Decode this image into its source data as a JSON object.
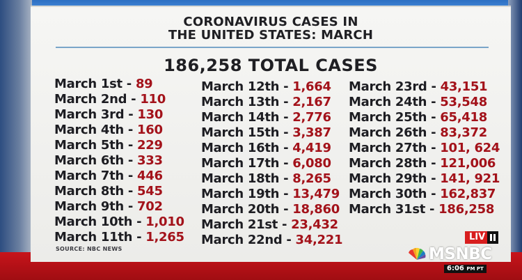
{
  "headline": {
    "line1": "CORONAVIRUS CASES IN",
    "line2": "THE UNITED STATES: MARCH"
  },
  "total": "186,258 TOTAL CASES",
  "columns": [
    [
      {
        "date": "March 1st",
        "count": "89"
      },
      {
        "date": "March 2nd",
        "count": "110"
      },
      {
        "date": "March 3rd",
        "count": "130"
      },
      {
        "date": "March 4th",
        "count": "160"
      },
      {
        "date": "March 5th",
        "count": "229"
      },
      {
        "date": "March 6th",
        "count": "333"
      },
      {
        "date": "March 7th",
        "count": "446"
      },
      {
        "date": "March 8th",
        "count": "545"
      },
      {
        "date": "March 9th",
        "count": "702"
      },
      {
        "date": "March 10th",
        "count": "1,010"
      },
      {
        "date": "March 11th",
        "count": "1,265"
      }
    ],
    [
      {
        "date": "March 12th",
        "count": "1,664"
      },
      {
        "date": "March 13th",
        "count": "2,167"
      },
      {
        "date": "March 14th",
        "count": "2,776"
      },
      {
        "date": "March 15th",
        "count": "3,387"
      },
      {
        "date": "March 16th",
        "count": "4,419"
      },
      {
        "date": "March 17th",
        "count": "6,080"
      },
      {
        "date": "March 18th",
        "count": "8,265"
      },
      {
        "date": "March 19th",
        "count": "13,479"
      },
      {
        "date": "March 20th",
        "count": "18,860"
      },
      {
        "date": "March 21st",
        "count": "23,432"
      },
      {
        "date": "March 22nd",
        "count": "34,221"
      }
    ],
    [
      {
        "date": "March 23rd",
        "count": "43,151"
      },
      {
        "date": "March 24th",
        "count": "53,548"
      },
      {
        "date": "March 25th",
        "count": "65,418"
      },
      {
        "date": "March 26th",
        "count": "83,372"
      },
      {
        "date": "March 27th",
        "count": "101, 624"
      },
      {
        "date": "March 28th",
        "count": "121,006"
      },
      {
        "date": "March 29th",
        "count": "141, 921"
      },
      {
        "date": "March 30th",
        "count": "162,837"
      },
      {
        "date": "March 31st",
        "count": "186,258"
      }
    ]
  ],
  "separator": " - ",
  "source": "SOURCE: NBC NEWS",
  "bug": {
    "live": "LIV",
    "network": "MSNBC",
    "time": "6:06",
    "time_zone": "PM PT"
  },
  "colors": {
    "count_red": "#a3121a",
    "text_dark": "#1d1d22",
    "live_red": "#d81e1e",
    "panel": "#f2f2f0"
  },
  "icons": [
    "pause-icon",
    "peacock-icon"
  ]
}
